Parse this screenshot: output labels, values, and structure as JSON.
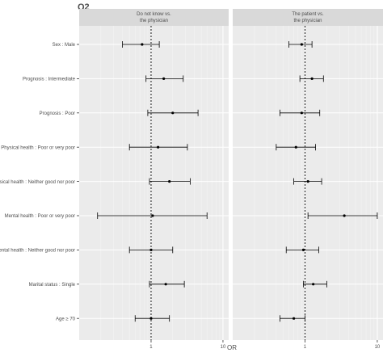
{
  "chart_data": {
    "type": "forest",
    "title": "Q2",
    "xlabel": "OR",
    "x_scale": "log",
    "xlim": [
      0.1,
      12
    ],
    "x_ticks": [
      1,
      10
    ],
    "reference_line": 1,
    "categories": [
      "Sex : Male",
      "Prognosis : Intermediate",
      "Prognosis : Poor",
      "Physical health : Poor or very poor",
      "Physical health : Neither good nor poor",
      "Mental health : Poor or very poor",
      "Mental health : Neither good nor poor",
      "Marital status : Single",
      "Age ≥ 70"
    ],
    "panels": [
      {
        "title": [
          "Do not know vs.",
          "the physician"
        ],
        "estimates": [
          0.75,
          1.5,
          2.0,
          1.25,
          1.8,
          1.05,
          1.0,
          1.6,
          1.0
        ],
        "lower": [
          0.4,
          0.85,
          0.9,
          0.5,
          0.95,
          0.18,
          0.5,
          0.95,
          0.6
        ],
        "upper": [
          1.3,
          2.8,
          4.5,
          3.2,
          3.5,
          6.0,
          2.0,
          2.9,
          1.8
        ]
      },
      {
        "title": [
          "The patient vs.",
          "the physician"
        ],
        "estimates": [
          0.9,
          1.25,
          0.9,
          0.75,
          1.1,
          3.5,
          0.95,
          1.3,
          0.7
        ],
        "lower": [
          0.6,
          0.85,
          0.45,
          0.4,
          0.7,
          1.1,
          0.55,
          0.95,
          0.45
        ],
        "upper": [
          1.25,
          1.8,
          1.6,
          1.4,
          1.7,
          10.0,
          1.55,
          2.0,
          1.0
        ]
      }
    ]
  }
}
